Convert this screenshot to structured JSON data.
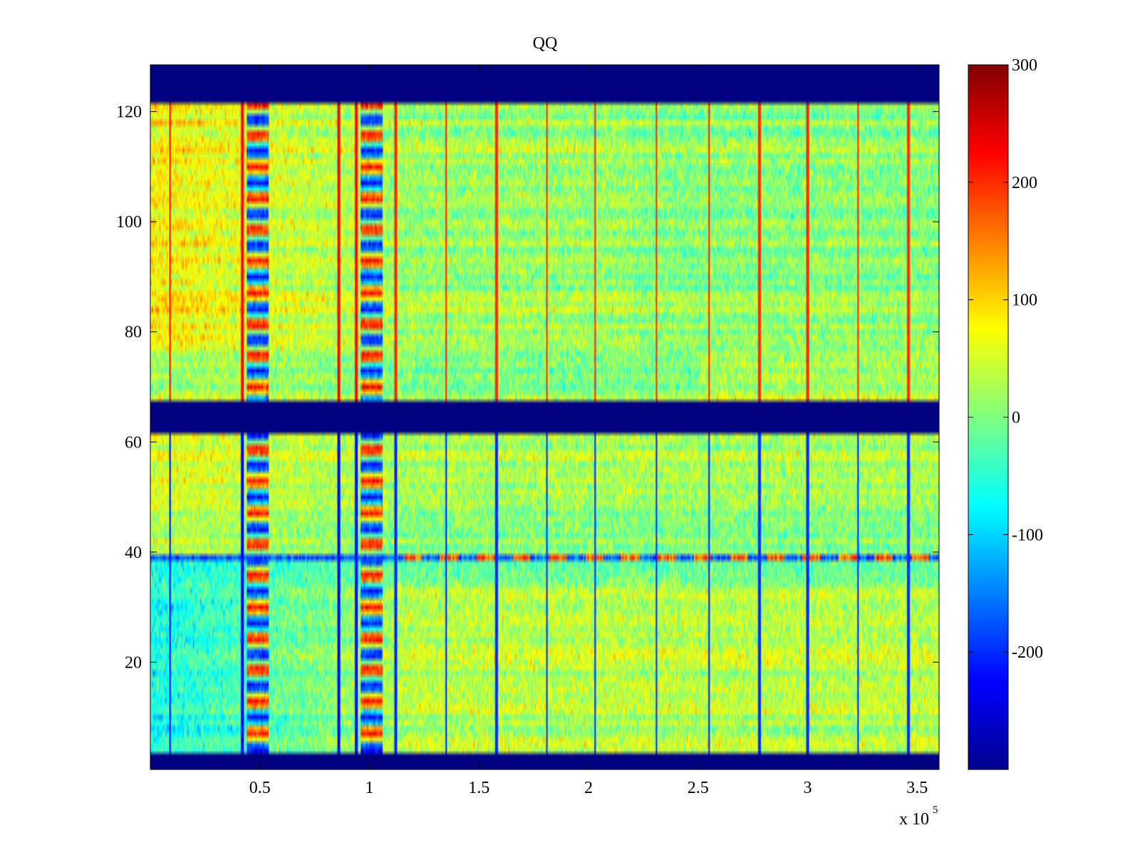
{
  "chart_data": {
    "type": "heatmap",
    "title": "QQ",
    "xlabel": "",
    "ylabel": "",
    "x_multiplier_label": {
      "base": "x 10",
      "exponent": "5"
    },
    "xlim": [
      0,
      3.6
    ],
    "ylim": [
      0.5,
      128.5
    ],
    "x_ticks": [
      0.5,
      1,
      1.5,
      2,
      2.5,
      3,
      3.5
    ],
    "x_tick_labels": [
      "0.5",
      "1",
      "1.5",
      "2",
      "2.5",
      "3",
      "3.5"
    ],
    "y_ticks": [
      20,
      40,
      60,
      80,
      100,
      120
    ],
    "y_tick_labels": [
      "20",
      "40",
      "60",
      "80",
      "100",
      "120"
    ],
    "colorbar": {
      "colormap": "jet",
      "clim": [
        -300,
        300
      ],
      "ticks": [
        300,
        200,
        100,
        0,
        -100,
        -200
      ],
      "tick_labels": [
        "300",
        "200",
        "100",
        "0",
        "-100",
        "-200"
      ]
    },
    "row_blocks": [
      {
        "rows": [
          1,
          3
        ],
        "value": -300,
        "note": "saturated band"
      },
      {
        "rows": [
          4,
          61
        ],
        "region": "lower data block"
      },
      {
        "rows": [
          62,
          67
        ],
        "value": -300,
        "note": "saturated band"
      },
      {
        "rows": [
          68,
          121
        ],
        "region": "upper data block"
      },
      {
        "rows": [
          122,
          128
        ],
        "value": -300,
        "note": "saturated band"
      }
    ],
    "vertical_lines": [
      {
        "x": 0.09,
        "upper": 220,
        "lower": -220
      },
      {
        "x": 0.42,
        "upper": 220,
        "lower": -220
      },
      {
        "x": 0.86,
        "upper": 220,
        "lower": -220
      },
      {
        "x": 0.94,
        "upper": 220,
        "lower": -220
      },
      {
        "x": 1.12,
        "upper": 200,
        "lower": -200
      },
      {
        "x": 1.35,
        "upper": 200,
        "lower": -200
      },
      {
        "x": 1.58,
        "upper": 200,
        "lower": -200
      },
      {
        "x": 1.81,
        "upper": 200,
        "lower": -200
      },
      {
        "x": 2.03,
        "upper": 200,
        "lower": -200
      },
      {
        "x": 2.31,
        "upper": 200,
        "lower": -200
      },
      {
        "x": 2.55,
        "upper": 200,
        "lower": -200
      },
      {
        "x": 2.78,
        "upper": 200,
        "lower": -200
      },
      {
        "x": 3.0,
        "upper": 200,
        "lower": -200
      },
      {
        "x": 3.23,
        "upper": 200,
        "lower": -200
      },
      {
        "x": 3.46,
        "upper": 200,
        "lower": -200
      }
    ],
    "feature_columns": [
      {
        "x_range": [
          0.44,
          0.54
        ]
      },
      {
        "x_range": [
          0.96,
          1.06
        ]
      }
    ],
    "notable_rows": [
      {
        "row": 39,
        "note": "row alternating strongly positive and negative across the whole x range"
      }
    ]
  }
}
